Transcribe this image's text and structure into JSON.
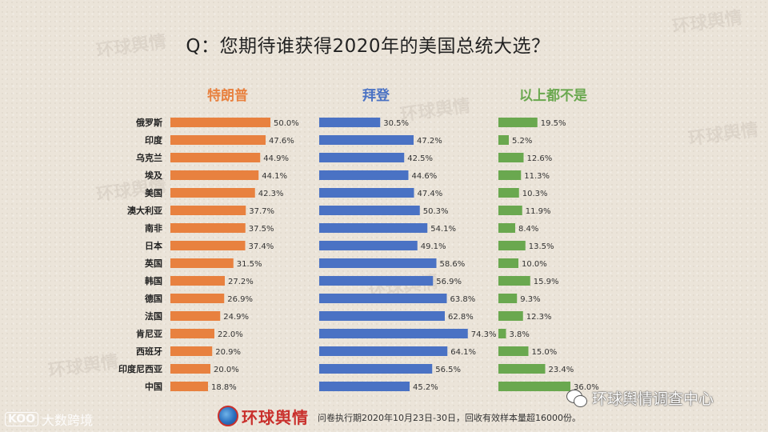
{
  "title": "Q：您期待谁获得2020年的美国总统大选？",
  "footer": {
    "note": "问卷执行期2020年10月23日-30日，回收有效样本量超16000份。",
    "logo_center": "环球舆情",
    "logo_left": "大数跨境",
    "logo_left_mark": "KOO",
    "wechat": "环球舆情调查中心"
  },
  "watermark_text": "环球舆情",
  "colors": {
    "trump": "#e8813f",
    "biden": "#4a72c4",
    "none": "#6aa84f"
  },
  "chart_data": {
    "type": "bar",
    "orientation": "horizontal",
    "title": "Q：您期待谁获得2020年的美国总统大选？",
    "categories": [
      "俄罗斯",
      "印度",
      "乌克兰",
      "埃及",
      "美国",
      "澳大利亚",
      "南非",
      "日本",
      "英国",
      "韩国",
      "德国",
      "法国",
      "肯尼亚",
      "西班牙",
      "印度尼西亚",
      "中国"
    ],
    "series": [
      {
        "name": "特朗普",
        "color": "#e8813f",
        "values": [
          50.0,
          47.6,
          44.9,
          44.1,
          42.3,
          37.7,
          37.5,
          37.4,
          31.5,
          27.2,
          26.9,
          24.9,
          22.0,
          20.9,
          20.0,
          18.8
        ]
      },
      {
        "name": "拜登",
        "color": "#4a72c4",
        "values": [
          30.5,
          47.2,
          42.5,
          44.6,
          47.4,
          50.3,
          54.1,
          49.1,
          58.6,
          56.9,
          63.8,
          62.8,
          74.3,
          64.1,
          56.5,
          45.2
        ]
      },
      {
        "name": "以上都不是",
        "color": "#6aa84f",
        "values": [
          19.5,
          5.2,
          12.6,
          11.3,
          10.3,
          11.9,
          8.4,
          13.5,
          10.0,
          15.9,
          9.3,
          12.3,
          3.8,
          15.0,
          23.4,
          36.0
        ]
      }
    ],
    "unit": "%"
  }
}
